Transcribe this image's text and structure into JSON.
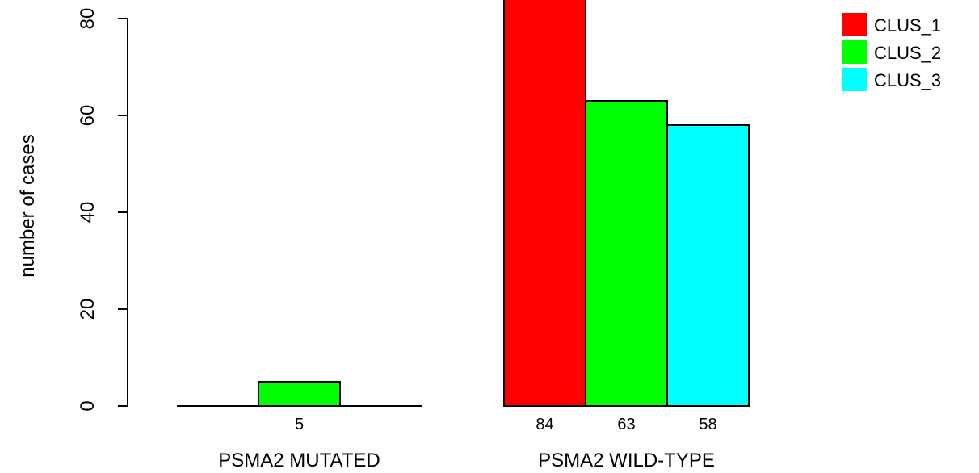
{
  "chart_data": {
    "type": "bar",
    "ylabel": "number of cases",
    "ylim": [
      0,
      88
    ],
    "yticks": [
      0,
      20,
      40,
      60,
      80
    ],
    "groups": [
      {
        "label": "PSMA2 MUTATED",
        "values": [
          0,
          5,
          0
        ],
        "value_labels": [
          "",
          "5",
          ""
        ]
      },
      {
        "label": "PSMA2 WILD-TYPE",
        "values": [
          84,
          63,
          58
        ],
        "value_labels": [
          "84",
          "63",
          "58"
        ]
      }
    ],
    "series": [
      {
        "name": "CLUS_1",
        "color": "#ff0000"
      },
      {
        "name": "CLUS_2",
        "color": "#00ff00"
      },
      {
        "name": "CLUS_3",
        "color": "#00ffff"
      }
    ],
    "legend_position": "top-right",
    "grid": false
  }
}
